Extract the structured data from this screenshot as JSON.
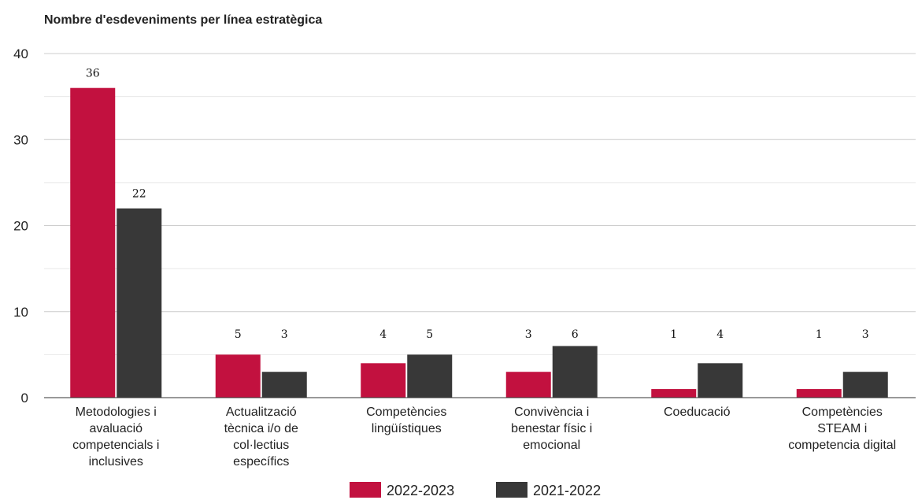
{
  "chart_data": {
    "type": "bar",
    "title": "Nombre d'esdeveniments per línea estratègica",
    "categories": [
      [
        "Metodologies i",
        "avaluació",
        "competencials i",
        "inclusives"
      ],
      [
        "Actualització",
        "tècnica i/o de",
        "col·lectius",
        "específics"
      ],
      [
        "Competències",
        "lingüístiques"
      ],
      [
        "Convivència i",
        "benestar físic i",
        "emocional"
      ],
      [
        "Coeducació"
      ],
      [
        "Competències",
        "STEAM i",
        "competencia digital"
      ]
    ],
    "series": [
      {
        "name": "2022-2023",
        "values": [
          36,
          5,
          4,
          3,
          1,
          1
        ],
        "color": "#c2113f"
      },
      {
        "name": "2021-2022",
        "values": [
          22,
          3,
          5,
          6,
          4,
          3
        ],
        "color": "#383838"
      }
    ],
    "ylim": [
      0,
      40
    ],
    "yticks": [
      0,
      10,
      20,
      30,
      40
    ],
    "grid": true,
    "legend": "bottom"
  }
}
